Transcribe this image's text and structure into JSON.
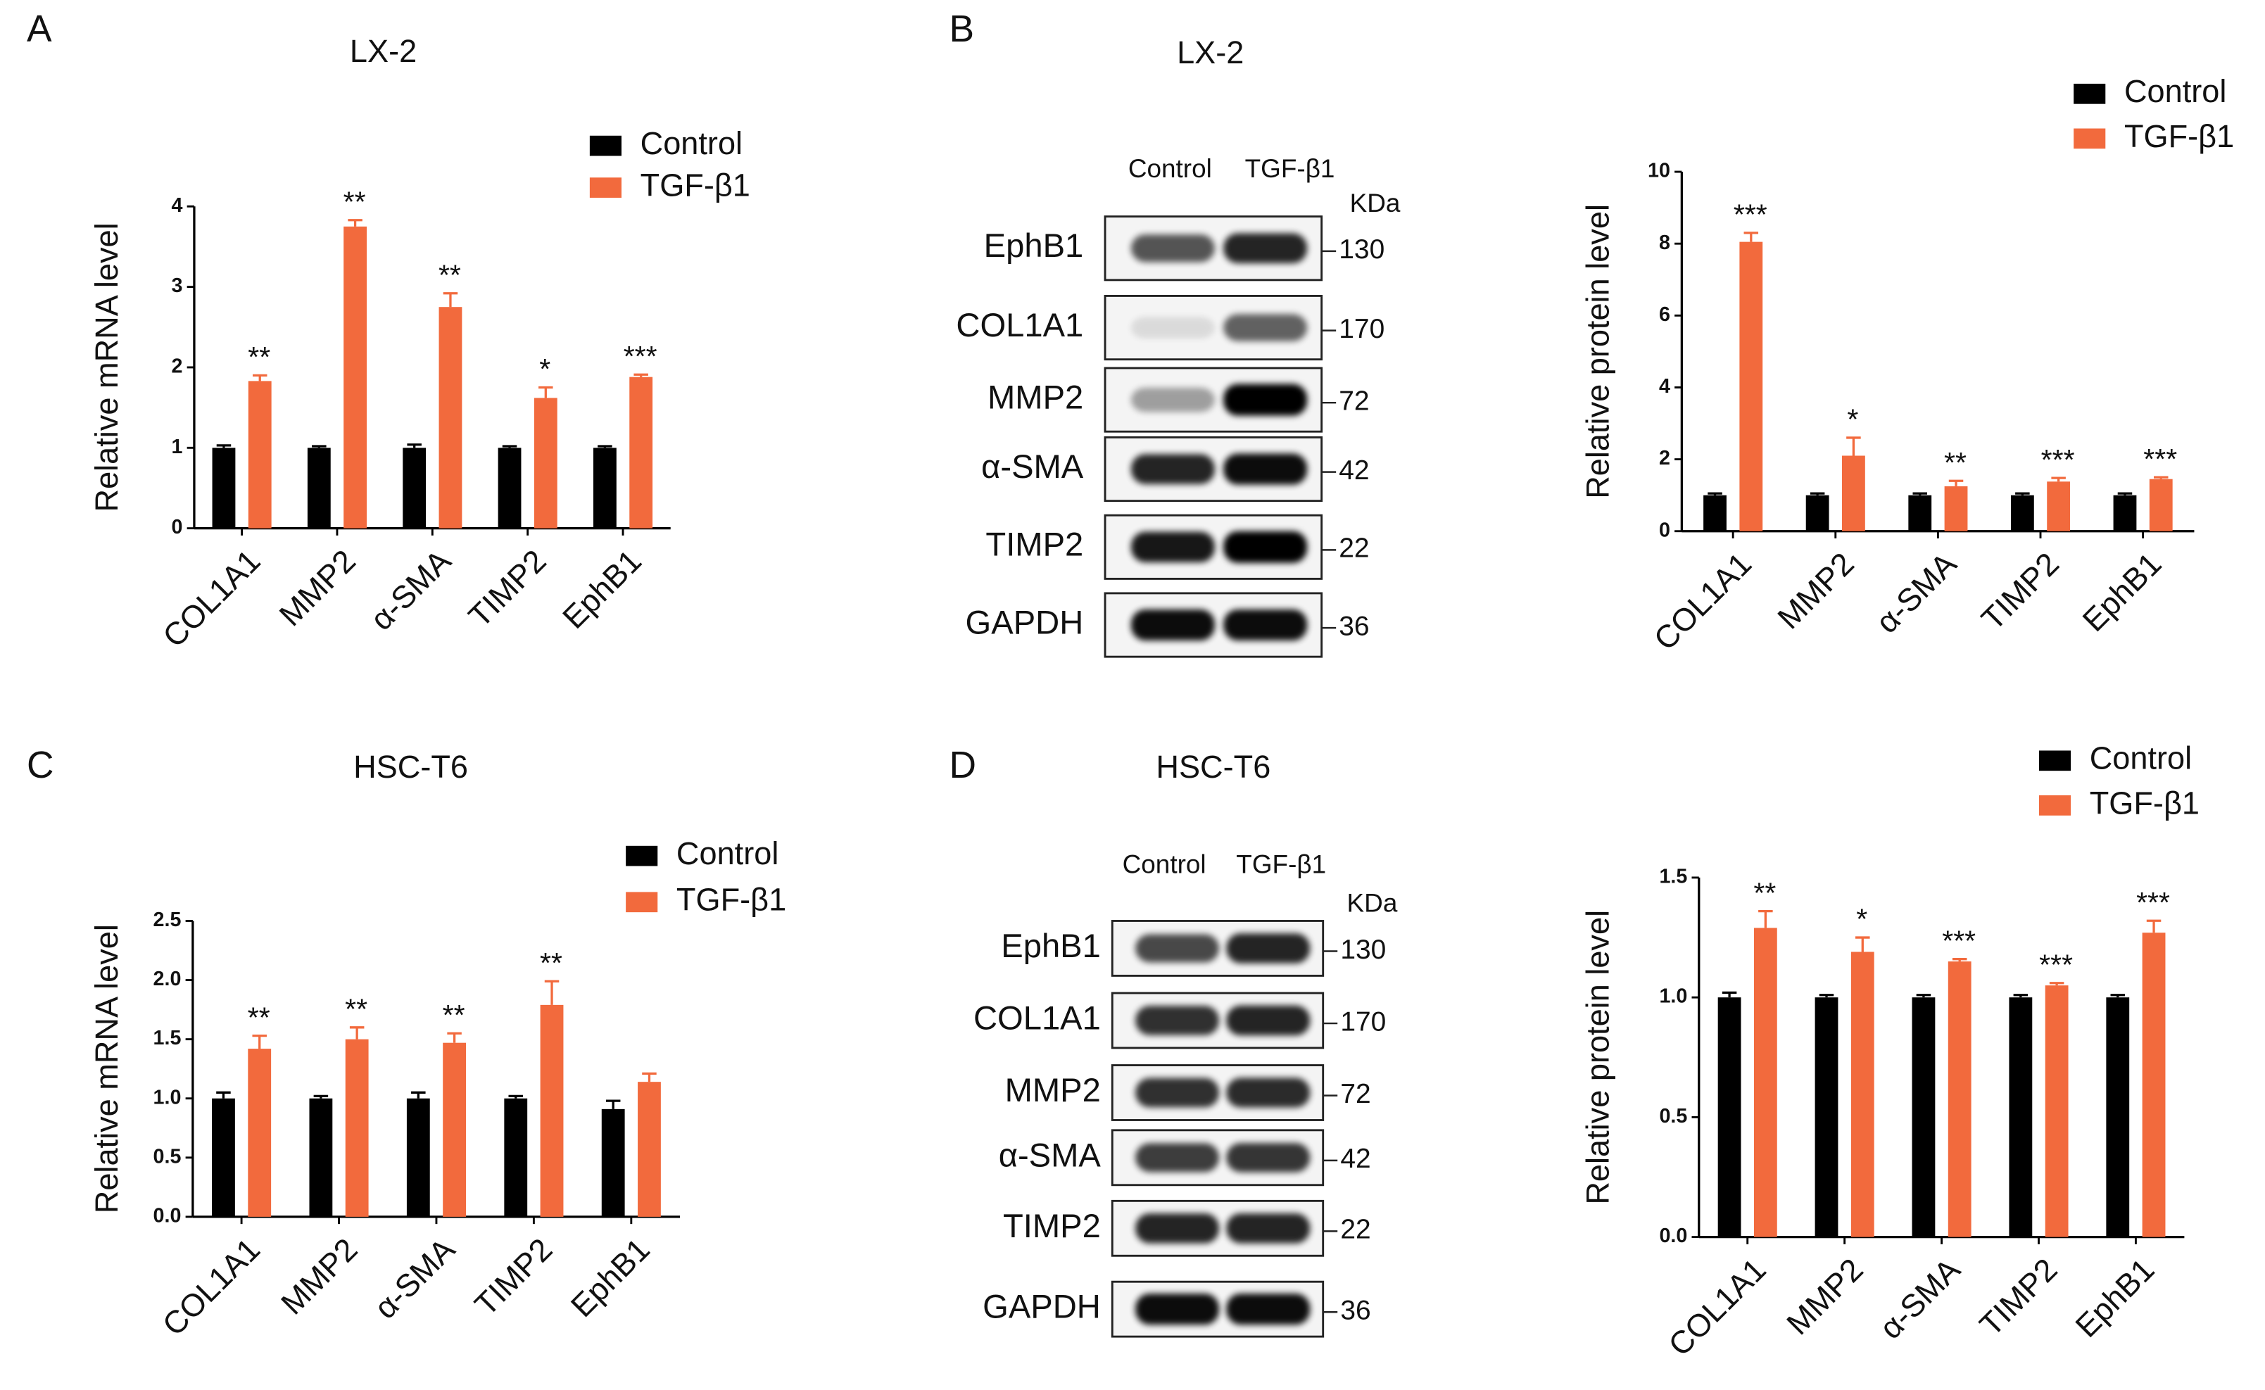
{
  "panels": [
    "A",
    "B",
    "C",
    "D"
  ],
  "blots": [
    {
      "title": "LX-2",
      "columns": [
        "Control",
        "TGF-β1"
      ],
      "unit": "KDa",
      "rows": [
        {
          "label": "EphB1",
          "kda": 130
        },
        {
          "label": "COL1A1",
          "kda": 170
        },
        {
          "label": "MMP2",
          "kda": 72
        },
        {
          "label": "α-SMA",
          "kda": 42
        },
        {
          "label": "TIMP2",
          "kda": 22
        },
        {
          "label": "GAPDH",
          "kda": 36
        }
      ]
    },
    {
      "title": "HSC-T6",
      "columns": [
        "Control",
        "TGF-β1"
      ],
      "unit": "KDa",
      "rows": [
        {
          "label": "EphB1",
          "kda": 130
        },
        {
          "label": "COL1A1",
          "kda": 170
        },
        {
          "label": "MMP2",
          "kda": 72
        },
        {
          "label": "α-SMA",
          "kda": 42
        },
        {
          "label": "TIMP2",
          "kda": 22
        },
        {
          "label": "GAPDH",
          "kda": 36
        }
      ]
    }
  ],
  "chart_data": [
    {
      "type": "bar",
      "title": "LX-2",
      "y_label": "Relative mRNA level",
      "categories": [
        "COL1A1",
        "MMP2",
        "α-SMA",
        "TIMP2",
        "EphB1"
      ],
      "series": [
        {
          "name": "Control",
          "color": "#000000",
          "values": [
            1,
            1,
            1,
            1,
            1
          ],
          "errors": [
            0.03,
            0.02,
            0.04,
            0.02,
            0.02
          ]
        },
        {
          "name": "TGF-β1",
          "color": "#f26a3d",
          "values": [
            1.83,
            3.75,
            2.75,
            1.62,
            1.88
          ],
          "errors": [
            0.07,
            0.08,
            0.17,
            0.13,
            0.03
          ]
        }
      ],
      "annotations": [
        "**",
        "**",
        "**",
        "*",
        "***"
      ],
      "ylim": [
        0,
        4
      ],
      "yticks": [
        0,
        1,
        2,
        3,
        4
      ]
    },
    {
      "type": "bar",
      "y_label": "Relative protein level",
      "categories": [
        "COL1A1",
        "MMP2",
        "α-SMA",
        "TIMP2",
        "EphB1"
      ],
      "series": [
        {
          "name": "Control",
          "color": "#000000",
          "values": [
            1,
            1,
            1,
            1,
            1
          ],
          "errors": [
            0.05,
            0.05,
            0.05,
            0.05,
            0.05
          ]
        },
        {
          "name": "TGF-β1",
          "color": "#f26a3d",
          "values": [
            8.05,
            2.1,
            1.25,
            1.38,
            1.45
          ],
          "errors": [
            0.25,
            0.5,
            0.15,
            0.1,
            0.05
          ]
        }
      ],
      "annotations": [
        "***",
        "*",
        "**",
        "***",
        "***"
      ],
      "ylim": [
        0,
        10
      ],
      "yticks": [
        0,
        2,
        4,
        6,
        8,
        10
      ]
    },
    {
      "type": "bar",
      "title": "HSC-T6",
      "y_label": "Relative mRNA level",
      "categories": [
        "COL1A1",
        "MMP2",
        "α-SMA",
        "TIMP2",
        "EphB1"
      ],
      "series": [
        {
          "name": "Control",
          "color": "#000000",
          "values": [
            1.0,
            1.0,
            1.0,
            1.0,
            0.91
          ],
          "errors": [
            0.05,
            0.02,
            0.05,
            0.02,
            0.07
          ]
        },
        {
          "name": "TGF-β1",
          "color": "#f26a3d",
          "values": [
            1.42,
            1.5,
            1.47,
            1.79,
            1.14
          ],
          "errors": [
            0.11,
            0.1,
            0.08,
            0.2,
            0.07
          ]
        }
      ],
      "annotations": [
        "**",
        "**",
        "**",
        "**",
        null
      ],
      "ylim": [
        0,
        2.5
      ],
      "yticks": [
        {
          "value": 0,
          "label": "0.0"
        },
        0.5,
        {
          "value": 1,
          "label": "1.0"
        },
        1.5,
        {
          "value": 2,
          "label": "2.0"
        },
        2.5
      ]
    },
    {
      "type": "bar",
      "y_label": "Relative protein level",
      "categories": [
        "COL1A1",
        "MMP2",
        "α-SMA",
        "TIMP2",
        "EphB1"
      ],
      "series": [
        {
          "name": "Control",
          "color": "#000000",
          "values": [
            1.0,
            1.0,
            1.0,
            1.0,
            1.0
          ],
          "errors": [
            0.02,
            0.01,
            0.01,
            0.01,
            0.01
          ]
        },
        {
          "name": "TGF-β1",
          "color": "#f26a3d",
          "values": [
            1.29,
            1.19,
            1.15,
            1.05,
            1.27
          ],
          "errors": [
            0.07,
            0.06,
            0.01,
            0.01,
            0.05
          ]
        }
      ],
      "annotations": [
        "**",
        "*",
        "***",
        "***",
        "***"
      ],
      "ylim": [
        0,
        1.5
      ],
      "yticks": [
        {
          "value": 0,
          "label": "0.0"
        },
        0.5,
        {
          "value": 1,
          "label": "1.0"
        },
        1.5
      ]
    }
  ]
}
